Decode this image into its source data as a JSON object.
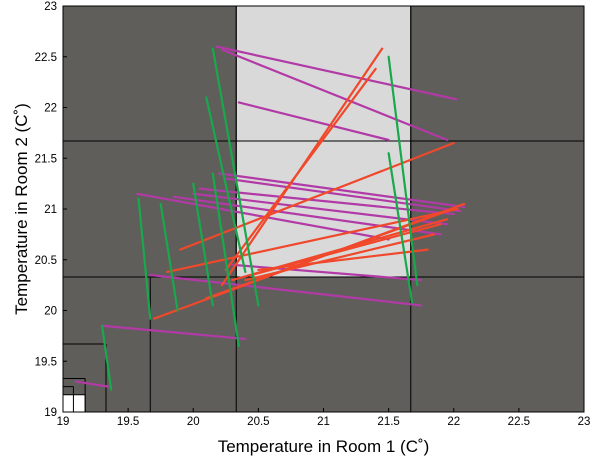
{
  "chart_data": {
    "type": "line",
    "xlabel": "Temperature in Room 1 (C˚)",
    "ylabel": "Temperature in Room 2 (C˚)",
    "xlim": [
      19,
      23
    ],
    "ylim": [
      19,
      23
    ],
    "x_ticks": [
      "19",
      "19.5",
      "20",
      "20.5",
      "21",
      "21.5",
      "22",
      "22.5",
      "23"
    ],
    "y_ticks": [
      "19",
      "19.5",
      "20",
      "20.5",
      "21",
      "21.5",
      "22",
      "22.5",
      "23"
    ],
    "grid": false,
    "colors": {
      "background": "#5f5e5b",
      "safe_region": "#d9d9d9",
      "target_cell": "#ffffff",
      "partition_lines": "#000000",
      "series_magenta": "#b23aa6",
      "series_orange": "#f0482a",
      "series_green": "#19a84c"
    },
    "regions": [
      {
        "kind": "safe_region",
        "x": [
          20.33,
          21.67
        ],
        "y": [
          20.33,
          23
        ]
      },
      {
        "kind": "target_cell",
        "x": [
          19,
          19.17
        ],
        "y": [
          19,
          19.17
        ]
      }
    ],
    "partition": {
      "vertical_full": [
        20.33,
        21.67
      ],
      "horizontal_full": [
        20.33,
        21.67
      ],
      "staircase": [
        {
          "x": 19.67,
          "y": 20.33,
          "y0": 19
        },
        {
          "x": 19.33,
          "y": 19.67,
          "y0": 19
        },
        {
          "x": 19.17,
          "y": 19.33,
          "y0": 19
        },
        {
          "x": 19.08,
          "y": 19.25,
          "y0": 19
        }
      ]
    },
    "series": [
      {
        "color_key": "series_magenta",
        "segments": [
          [
            [
              20.18,
              22.6
            ],
            [
              22.02,
              22.08
            ]
          ],
          [
            [
              20.22,
              22.57
            ],
            [
              21.95,
              21.68
            ]
          ],
          [
            [
              20.35,
              22.05
            ],
            [
              21.5,
              21.68
            ]
          ],
          [
            [
              20.2,
              21.35
            ],
            [
              22.08,
              21.02
            ]
          ],
          [
            [
              20.25,
              21.3
            ],
            [
              22.05,
              20.98
            ]
          ],
          [
            [
              20.05,
              21.2
            ],
            [
              22.0,
              20.95
            ]
          ],
          [
            [
              20.0,
              21.15
            ],
            [
              21.95,
              20.85
            ]
          ],
          [
            [
              19.85,
              21.12
            ],
            [
              21.9,
              20.75
            ]
          ],
          [
            [
              19.57,
              21.15
            ],
            [
              21.5,
              20.7
            ]
          ],
          [
            [
              20.3,
              20.45
            ],
            [
              21.75,
              20.3
            ]
          ],
          [
            [
              19.67,
              20.35
            ],
            [
              21.75,
              20.05
            ]
          ],
          [
            [
              19.3,
              19.85
            ],
            [
              20.4,
              19.72
            ]
          ],
          [
            [
              19.1,
              19.3
            ],
            [
              19.35,
              19.25
            ]
          ]
        ]
      },
      {
        "color_key": "series_orange",
        "segments": [
          [
            [
              20.22,
              20.25
            ],
            [
              21.45,
              22.58
            ]
          ],
          [
            [
              20.25,
              20.4
            ],
            [
              21.4,
              22.38
            ]
          ],
          [
            [
              19.9,
              20.6
            ],
            [
              22.0,
              21.65
            ]
          ],
          [
            [
              19.7,
              19.92
            ],
            [
              22.08,
              21.05
            ]
          ],
          [
            [
              19.8,
              20.38
            ],
            [
              22.03,
              21.0
            ]
          ],
          [
            [
              20.1,
              20.12
            ],
            [
              21.95,
              20.98
            ]
          ],
          [
            [
              20.3,
              20.3
            ],
            [
              21.95,
              20.9
            ]
          ],
          [
            [
              20.45,
              20.35
            ],
            [
              21.9,
              20.85
            ]
          ],
          [
            [
              20.4,
              20.3
            ],
            [
              21.85,
              20.75
            ]
          ],
          [
            [
              20.5,
              20.4
            ],
            [
              21.8,
              20.6
            ]
          ]
        ]
      },
      {
        "color_key": "series_green",
        "segments": [
          [
            [
              20.15,
              22.58
            ],
            [
              20.5,
              20.05
            ]
          ],
          [
            [
              20.1,
              22.1
            ],
            [
              20.4,
              20.38
            ]
          ],
          [
            [
              21.5,
              22.5
            ],
            [
              21.72,
              20.25
            ]
          ],
          [
            [
              21.5,
              21.55
            ],
            [
              21.68,
              20.08
            ]
          ],
          [
            [
              19.58,
              21.1
            ],
            [
              19.67,
              19.92
            ]
          ],
          [
            [
              19.75,
              21.05
            ],
            [
              19.88,
              20.0
            ]
          ],
          [
            [
              20.0,
              21.25
            ],
            [
              20.15,
              20.05
            ]
          ],
          [
            [
              20.15,
              21.35
            ],
            [
              20.35,
              19.65
            ]
          ],
          [
            [
              19.3,
              19.85
            ],
            [
              19.37,
              19.22
            ]
          ]
        ]
      }
    ]
  }
}
